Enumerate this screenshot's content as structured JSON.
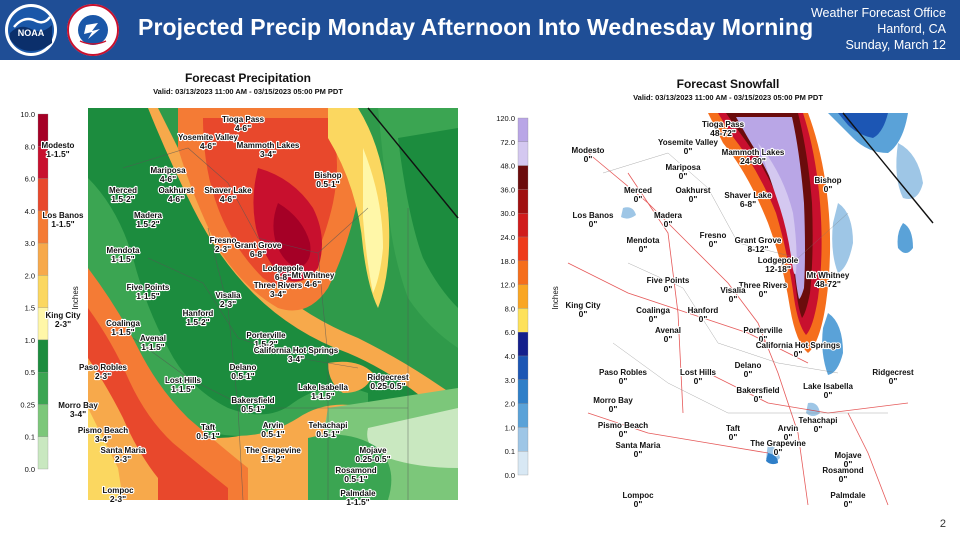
{
  "header": {
    "title": "Projected Precip Monday Afternoon Into Wednesday Morning",
    "office_line1": "Weather Forecast Office",
    "office_line2": "Hanford, CA",
    "office_line3": "Sunday, March 12",
    "logo1_name": "NOAA",
    "logo2_name": "NATIONAL WEATHER SERVICE",
    "banner_color": "#1f4e96"
  },
  "precip_panel": {
    "title": "Forecast Precipitation",
    "valid": "Valid: 03/13/2023 11:00 AM - 03/15/2023 05:00 PM PDT",
    "colorbar_label": "Inches",
    "colorbar_ticks": [
      "10.0",
      "8.0",
      "6.0",
      "4.0",
      "3.0",
      "2.0",
      "1.5",
      "1.0",
      "0.5",
      "0.25",
      "0.1",
      "0.0"
    ],
    "colorbar_colors": [
      "#a50026",
      "#c8102e",
      "#e8482c",
      "#f47b35",
      "#f7a94b",
      "#fbd760",
      "#fff7a8",
      "#1c8c3e",
      "#3ba552",
      "#7cc77a",
      "#c9e8c0",
      "#f2f2f2"
    ],
    "cities": [
      {
        "name": "Tioga Pass",
        "value": "4-6\""
      },
      {
        "name": "Modesto",
        "value": "1-1.5\""
      },
      {
        "name": "Yosemite Valley",
        "value": "4-6\""
      },
      {
        "name": "Mammoth Lakes",
        "value": "3-4\""
      },
      {
        "name": "Mariposa",
        "value": "4-6\""
      },
      {
        "name": "Merced",
        "value": "1.5-2\""
      },
      {
        "name": "Oakhurst",
        "value": "4-6\""
      },
      {
        "name": "Shaver Lake",
        "value": "4-6\""
      },
      {
        "name": "Bishop",
        "value": "0.5-1\""
      },
      {
        "name": "Los Banos",
        "value": "1-1.5\""
      },
      {
        "name": "Madera",
        "value": "1.5-2\""
      },
      {
        "name": "Fresno",
        "value": "2-3\""
      },
      {
        "name": "Grant Grove",
        "value": "6-8\""
      },
      {
        "name": "Mendota",
        "value": "1-1.5\""
      },
      {
        "name": "Lodgepole",
        "value": "6-8\""
      },
      {
        "name": "Mt Whitney",
        "value": "4-6\""
      },
      {
        "name": "Three Rivers",
        "value": "3-4\""
      },
      {
        "name": "Visalia",
        "value": "2-3\""
      },
      {
        "name": "Five Points",
        "value": "1-1.5\""
      },
      {
        "name": "King City",
        "value": "2-3\""
      },
      {
        "name": "Hanford",
        "value": "1.5-2\""
      },
      {
        "name": "Coalinga",
        "value": "1-1.5\""
      },
      {
        "name": "Porterville",
        "value": "1.5-2\""
      },
      {
        "name": "Avenal",
        "value": "1-1.5\""
      },
      {
        "name": "California Hot Springs",
        "value": "3-4\""
      },
      {
        "name": "Paso Robles",
        "value": "2-3\""
      },
      {
        "name": "Delano",
        "value": "0.5-1\""
      },
      {
        "name": "Lost Hills",
        "value": "1-1.5\""
      },
      {
        "name": "Lake Isabella",
        "value": "1-1.5\""
      },
      {
        "name": "Ridgecrest",
        "value": "0.25-0.5\""
      },
      {
        "name": "Bakersfield",
        "value": "0.5-1\""
      },
      {
        "name": "Morro Bay",
        "value": "3-4\""
      },
      {
        "name": "Pismo Beach",
        "value": "3-4\""
      },
      {
        "name": "Taft",
        "value": "0.5-1\""
      },
      {
        "name": "Arvin",
        "value": "0.5-1\""
      },
      {
        "name": "Tehachapi",
        "value": "0.5-1\""
      },
      {
        "name": "Santa Maria",
        "value": "2-3\""
      },
      {
        "name": "The Grapevine",
        "value": "1.5-2\""
      },
      {
        "name": "Mojave",
        "value": "0.25-0.5\""
      },
      {
        "name": "Rosamond",
        "value": "0.5-1\""
      },
      {
        "name": "Lompoc",
        "value": "2-3\""
      },
      {
        "name": "Palmdale",
        "value": "1-1.5\""
      }
    ]
  },
  "snow_panel": {
    "title": "Forecast Snowfall",
    "valid": "Valid: 03/13/2023 11:00 AM - 03/15/2023 05:00 PM PDT",
    "colorbar_label": "Inches",
    "colorbar_ticks": [
      "120.0",
      "72.0",
      "48.0",
      "36.0",
      "30.0",
      "24.0",
      "18.0",
      "12.0",
      "8.0",
      "6.0",
      "4.0",
      "3.0",
      "2.0",
      "1.0",
      "0.1",
      "0.0"
    ],
    "colorbar_colors": [
      "#b9a6e6",
      "#d4c8f0",
      "#6b0c0c",
      "#a01010",
      "#d01c1c",
      "#ee3a1a",
      "#f56e1c",
      "#f9a623",
      "#fde15a",
      "#14208c",
      "#1c56b4",
      "#2f7fc8",
      "#5aa2d8",
      "#9ec6e6",
      "#d8e8f4",
      "#ffffff"
    ],
    "cities": [
      {
        "name": "Tioga Pass",
        "value": "48-72\""
      },
      {
        "name": "Modesto",
        "value": "0\""
      },
      {
        "name": "Yosemite Valley",
        "value": "0\""
      },
      {
        "name": "Mammoth Lakes",
        "value": "24-30\""
      },
      {
        "name": "Mariposa",
        "value": "0\""
      },
      {
        "name": "Merced",
        "value": "0\""
      },
      {
        "name": "Oakhurst",
        "value": "0\""
      },
      {
        "name": "Shaver Lake",
        "value": "6-8\""
      },
      {
        "name": "Bishop",
        "value": "0\""
      },
      {
        "name": "Los Banos",
        "value": "0\""
      },
      {
        "name": "Madera",
        "value": "0\""
      },
      {
        "name": "Fresno",
        "value": "0\""
      },
      {
        "name": "Grant Grove",
        "value": "8-12\""
      },
      {
        "name": "Mendota",
        "value": "0\""
      },
      {
        "name": "Lodgepole",
        "value": "12-18\""
      },
      {
        "name": "Mt Whitney",
        "value": "48-72\""
      },
      {
        "name": "Three Rivers",
        "value": "0\""
      },
      {
        "name": "Visalia",
        "value": "0\""
      },
      {
        "name": "Five Points",
        "value": "0\""
      },
      {
        "name": "King City",
        "value": "0\""
      },
      {
        "name": "Hanford",
        "value": "0\""
      },
      {
        "name": "Coalinga",
        "value": "0\""
      },
      {
        "name": "Porterville",
        "value": "0\""
      },
      {
        "name": "Avenal",
        "value": "0\""
      },
      {
        "name": "California Hot Springs",
        "value": "0\""
      },
      {
        "name": "Paso Robles",
        "value": "0\""
      },
      {
        "name": "Delano",
        "value": "0\""
      },
      {
        "name": "Lost Hills",
        "value": "0\""
      },
      {
        "name": "Lake Isabella",
        "value": "0\""
      },
      {
        "name": "Ridgecrest",
        "value": "0\""
      },
      {
        "name": "Bakersfield",
        "value": "0\""
      },
      {
        "name": "Morro Bay",
        "value": "0\""
      },
      {
        "name": "Pismo Beach",
        "value": "0\""
      },
      {
        "name": "Taft",
        "value": "0\""
      },
      {
        "name": "Arvin",
        "value": "0\""
      },
      {
        "name": "Tehachapi",
        "value": "0\""
      },
      {
        "name": "Santa Maria",
        "value": "0\""
      },
      {
        "name": "The Grapevine",
        "value": "0\""
      },
      {
        "name": "Mojave",
        "value": "0\""
      },
      {
        "name": "Rosamond",
        "value": "0\""
      },
      {
        "name": "Lompoc",
        "value": "0\""
      },
      {
        "name": "Palmdale",
        "value": "0\""
      }
    ]
  },
  "page_number": "2"
}
